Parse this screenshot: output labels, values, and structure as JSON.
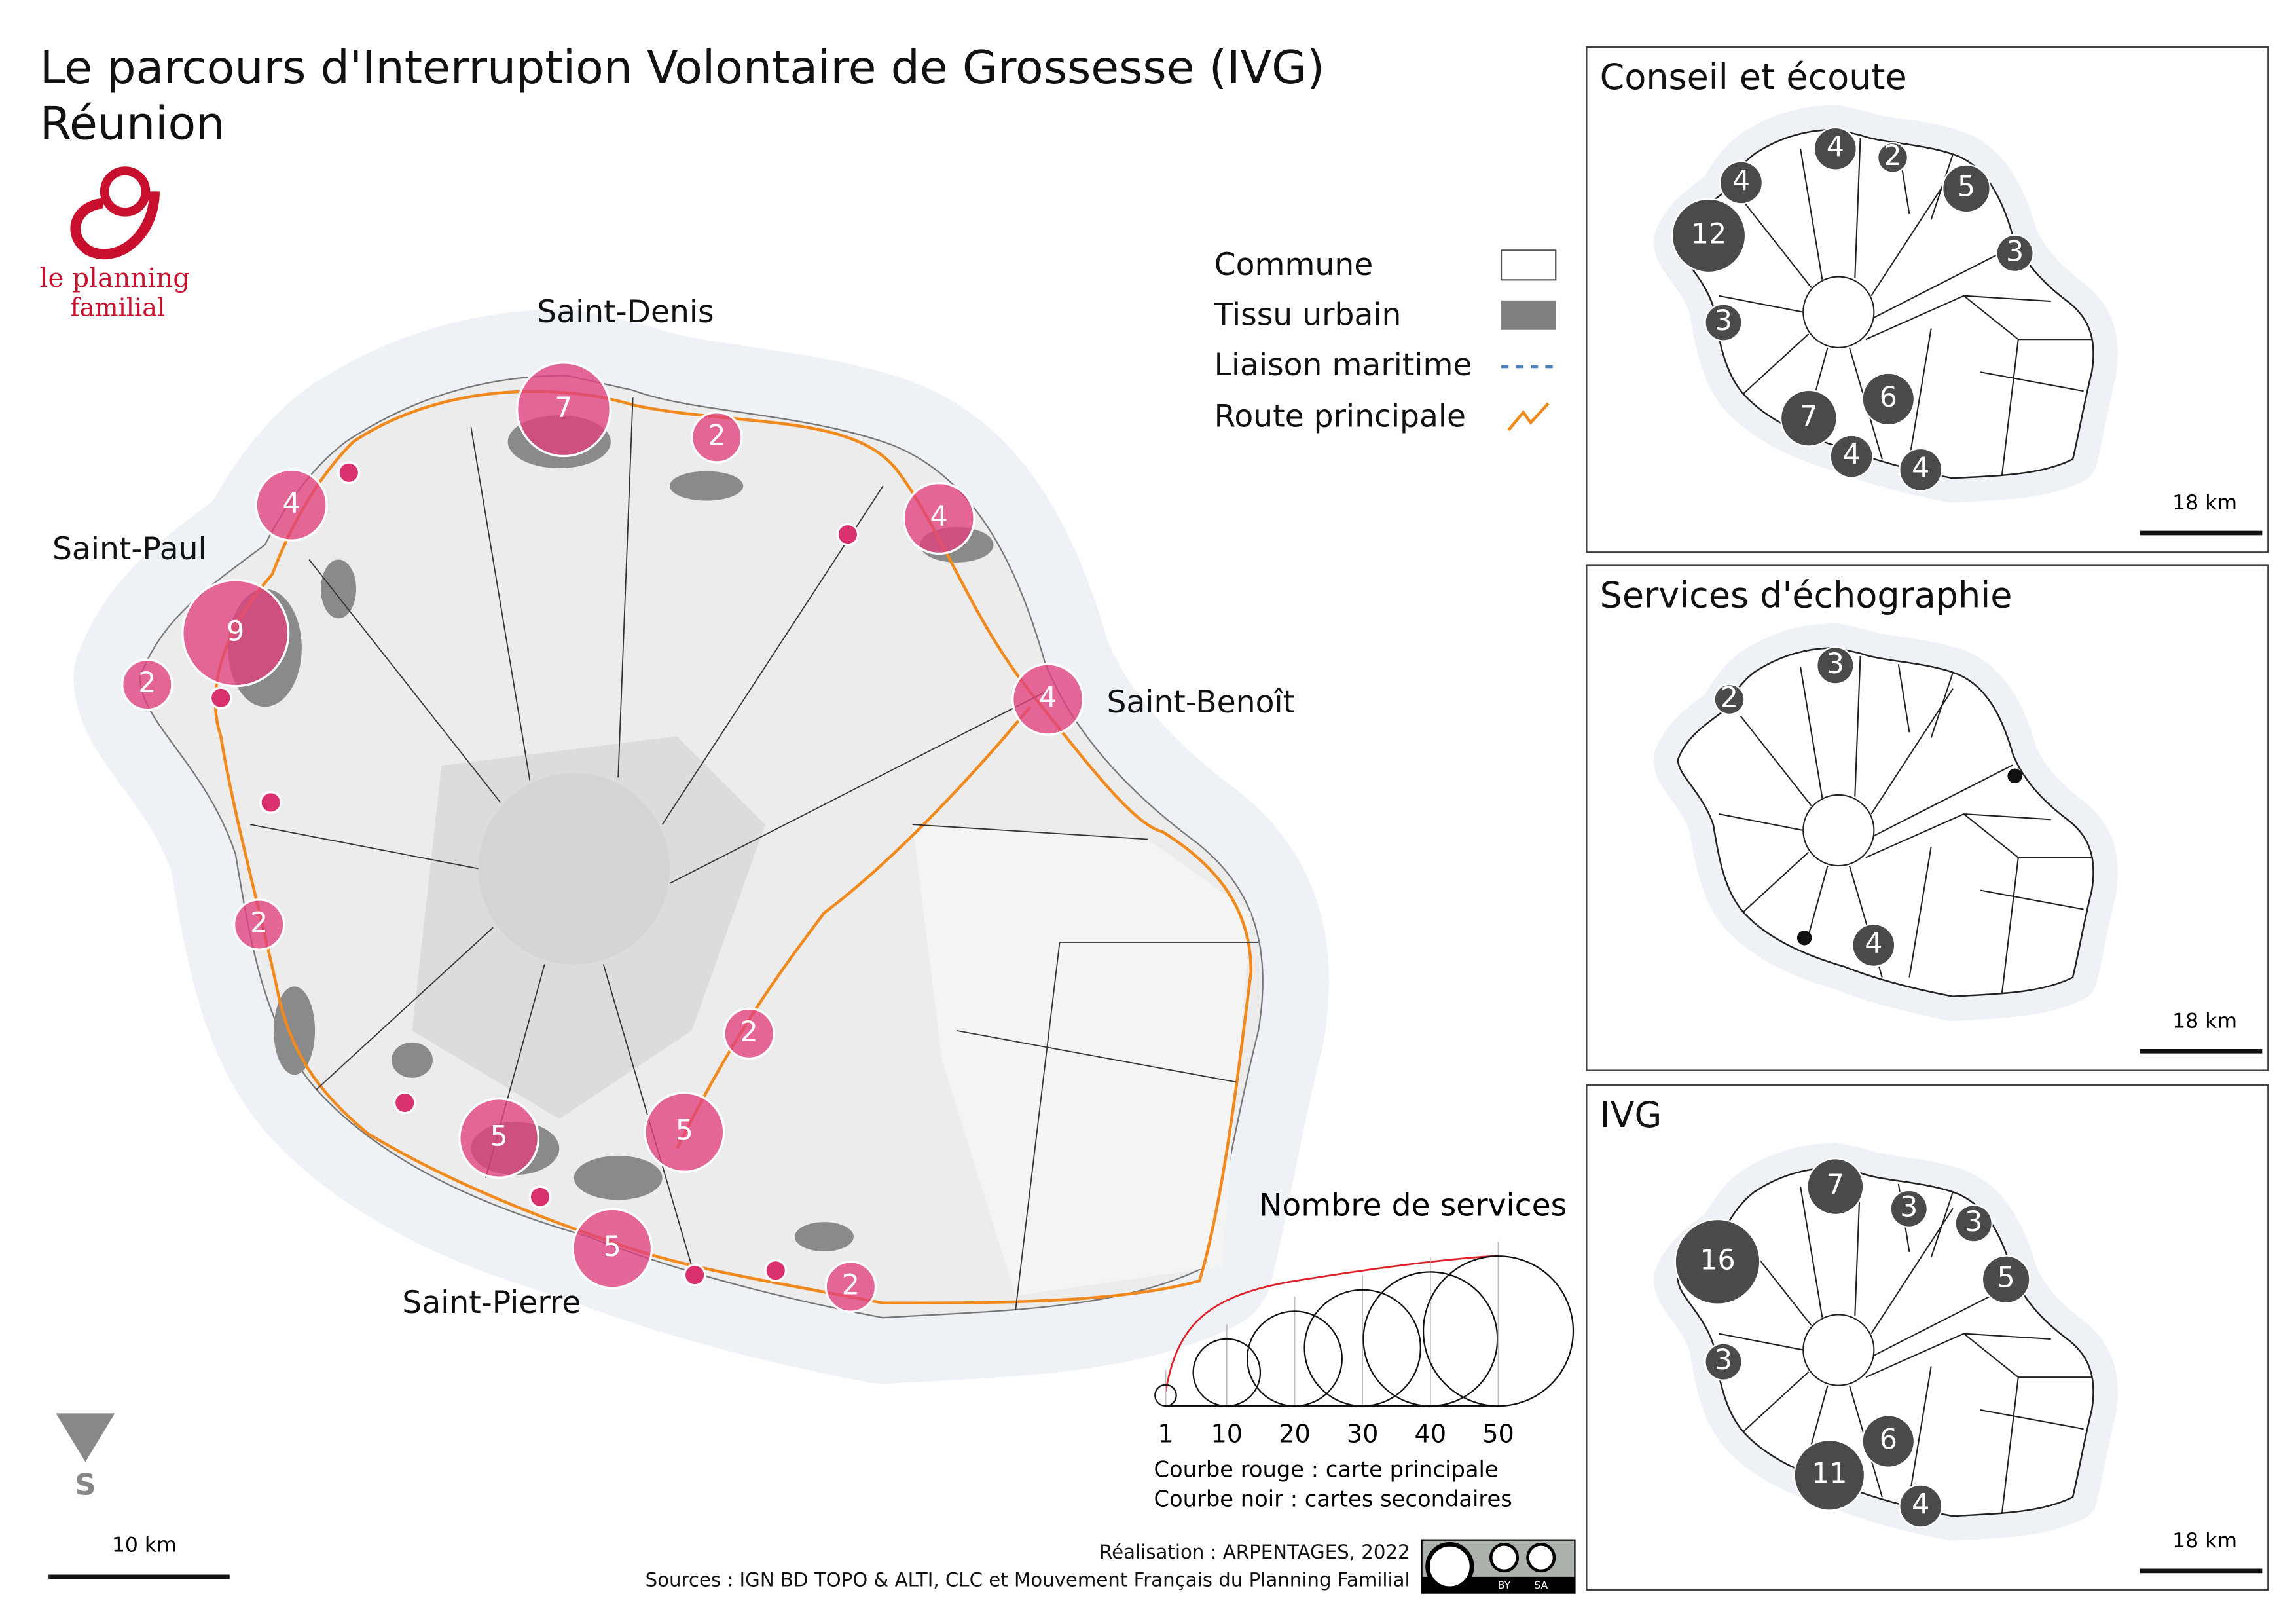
{
  "header": {
    "title_lines": [
      "Le parcours d'Interruption Volontaire de Grossesse (IVG)",
      "Réunion"
    ]
  },
  "logo": {
    "lines": [
      "le planning",
      "familial"
    ]
  },
  "legend": {
    "items": [
      "Commune",
      "Tissu urbain",
      "Liaison maritime",
      "Route principale"
    ]
  },
  "main_map": {
    "places": [
      "Saint-Denis",
      "Saint-Paul",
      "Saint-Benoît",
      "Saint-Pierre"
    ],
    "circles": [
      7,
      2,
      4,
      4,
      9,
      2,
      4,
      2,
      2,
      5,
      5,
      5,
      2
    ],
    "scale": "10 km",
    "orientation": "S"
  },
  "insets": [
    {
      "title": "Conseil et écoute",
      "circles": [
        12,
        4,
        4,
        2,
        5,
        3,
        3,
        7,
        6,
        4,
        4
      ],
      "scale": "18 km"
    },
    {
      "title": "Services d'échographie",
      "circles": [
        3,
        2,
        4
      ],
      "scale": "18 km"
    },
    {
      "title": "IVG",
      "circles": [
        7,
        3,
        3,
        16,
        5,
        3,
        6,
        11,
        4
      ],
      "scale": "18 km"
    }
  ],
  "size_legend": {
    "title": "Nombre de services",
    "ticks": [
      1,
      10,
      20,
      30,
      40,
      50
    ],
    "notes": [
      "Courbe rouge : carte principale",
      "Courbe noir : cartes secondaires"
    ]
  },
  "credits": {
    "lines": [
      "Réalisation :  ARPENTAGES, 2022",
      "Sources : IGN BD TOPO & ALTI, CLC et Mouvement Français du Planning Familial"
    ],
    "license": [
      "BY",
      "SA"
    ]
  }
}
